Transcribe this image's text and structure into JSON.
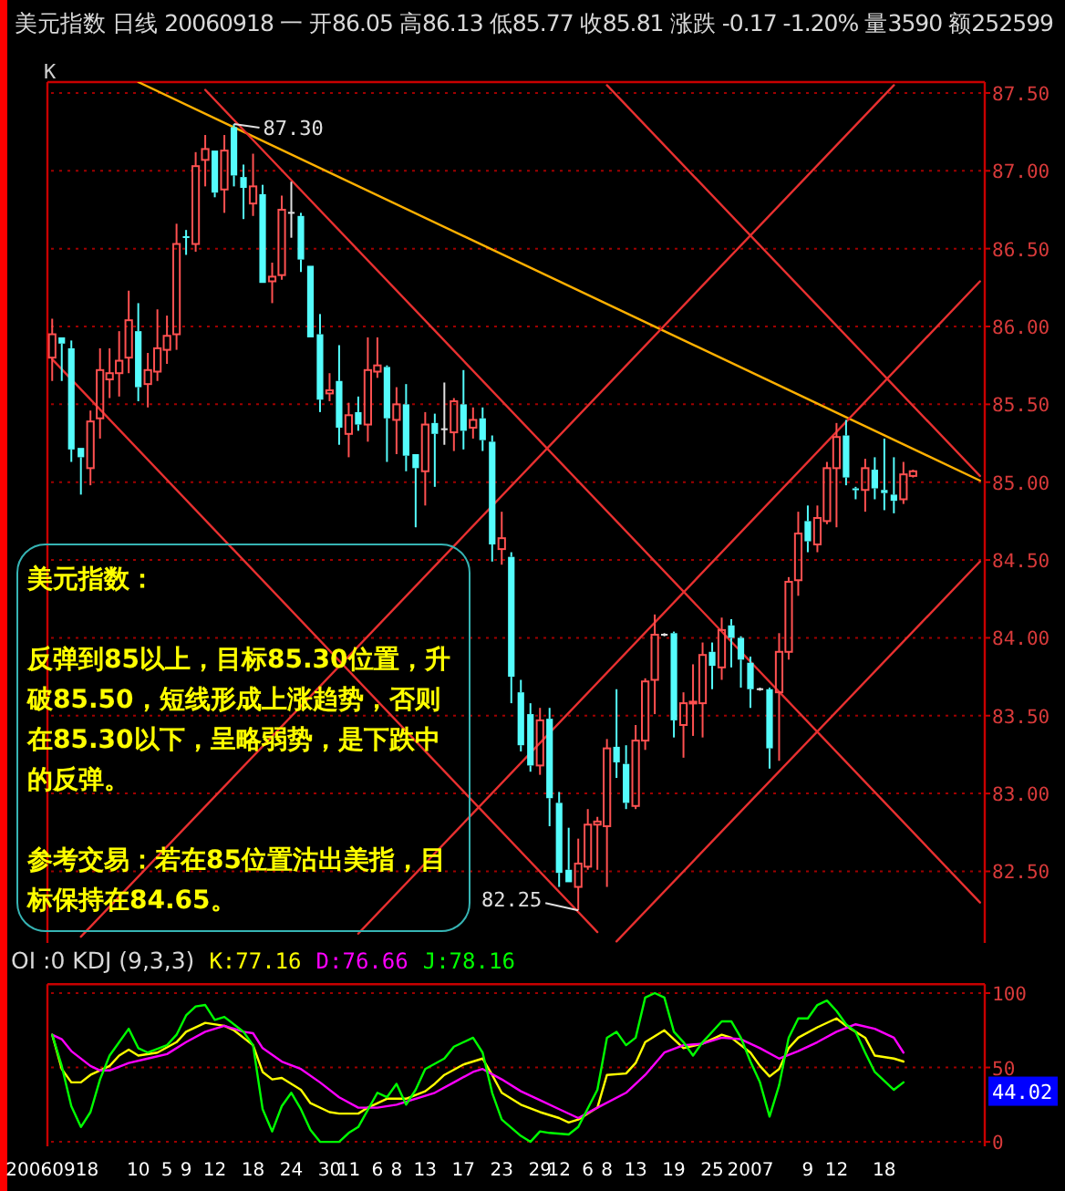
{
  "chart_data": [
    {
      "type": "candlestick",
      "title": "美元指数 日线 20060918 一 开86.05 高86.13 低85.77 收85.81 涨跌 -0.17 -1.20% 量3590 额252599",
      "categories": [
        "20060918",
        null,
        null,
        null,
        null,
        null,
        null,
        null,
        null,
        "10",
        null,
        null,
        "5",
        null,
        "9",
        null,
        null,
        "12",
        null,
        null,
        null,
        "18",
        null,
        null,
        null,
        "24",
        null,
        null,
        null,
        "30",
        null,
        "11",
        null,
        null,
        "6",
        null,
        "8",
        null,
        null,
        "13",
        null,
        null,
        null,
        "17",
        null,
        null,
        null,
        "23",
        null,
        null,
        null,
        "29",
        null,
        "12",
        null,
        null,
        "6",
        null,
        "8",
        null,
        null,
        "13",
        null,
        null,
        null,
        "19",
        null,
        null,
        null,
        "25",
        null,
        null,
        null,
        "2007",
        null,
        null,
        null,
        null,
        null,
        "9",
        null,
        null,
        "12",
        null,
        null,
        null,
        null,
        "18",
        null,
        null,
        null,
        null,
        null,
        null,
        null,
        null,
        null,
        null
      ],
      "ylim": [
        82.04,
        87.57
      ],
      "yticks": [
        {
          "value": 82.5,
          "label": "82.50"
        },
        {
          "value": 83,
          "label": "83.00"
        },
        {
          "value": 83.5,
          "label": "83.50"
        },
        {
          "value": 84,
          "label": "84.00"
        },
        {
          "value": 84.5,
          "label": "84.50"
        },
        {
          "value": 85,
          "label": "85.00"
        },
        {
          "value": 85.5,
          "label": "85.50"
        },
        {
          "value": 86,
          "label": "86.00"
        },
        {
          "value": 86.5,
          "label": "86.50"
        },
        {
          "value": 87,
          "label": "87.00"
        },
        {
          "value": 87.5,
          "label": "87.50"
        }
      ],
      "grid": "y",
      "tick_labels": "y",
      "ohlc": [
        [
          85.8,
          86.05,
          85.65,
          85.95
        ],
        [
          85.93,
          85.93,
          85.65,
          85.89
        ],
        [
          85.86,
          85.91,
          85.13,
          85.21
        ],
        [
          85.22,
          85.22,
          84.92,
          85.16
        ],
        [
          85.09,
          85.46,
          84.98,
          85.39
        ],
        [
          85.41,
          85.86,
          85.28,
          85.72
        ],
        [
          85.66,
          85.86,
          85.54,
          85.7
        ],
        [
          85.7,
          85.97,
          85.55,
          85.78
        ],
        [
          85.8,
          86.23,
          85.7,
          86.04
        ],
        [
          85.97,
          86.15,
          85.52,
          85.61
        ],
        [
          85.63,
          85.83,
          85.48,
          85.72
        ],
        [
          85.71,
          86.11,
          85.65,
          85.86
        ],
        [
          85.85,
          86.07,
          85.76,
          85.94
        ],
        [
          85.95,
          86.66,
          85.85,
          86.53
        ],
        [
          86.58,
          86.62,
          86.46,
          86.57
        ],
        [
          86.53,
          87.12,
          86.48,
          87.03
        ],
        [
          87.07,
          87.23,
          86.9,
          87.14
        ],
        [
          87.13,
          87.13,
          86.83,
          86.86
        ],
        [
          86.88,
          87.23,
          86.73,
          87.13
        ],
        [
          87.28,
          87.3,
          86.9,
          86.97
        ],
        [
          86.96,
          87.04,
          86.69,
          86.89
        ],
        [
          86.79,
          87.11,
          86.71,
          86.9
        ],
        [
          86.85,
          86.91,
          86.28,
          86.28
        ],
        [
          86.29,
          86.41,
          86.15,
          86.32
        ],
        [
          86.33,
          86.84,
          86.3,
          86.75
        ],
        [
          86.73,
          86.93,
          86.57,
          86.73
        ],
        [
          86.71,
          86.73,
          86.35,
          86.43
        ],
        [
          86.39,
          86.39,
          85.93,
          85.93
        ],
        [
          85.95,
          86.08,
          85.45,
          85.53
        ],
        [
          85.57,
          85.7,
          85.52,
          85.59
        ],
        [
          85.65,
          85.88,
          85.24,
          85.35
        ],
        [
          85.31,
          85.51,
          85.16,
          85.43
        ],
        [
          85.45,
          85.55,
          85.33,
          85.37
        ],
        [
          85.37,
          85.93,
          85.26,
          85.72
        ],
        [
          85.71,
          85.93,
          85.67,
          85.75
        ],
        [
          85.74,
          85.75,
          85.13,
          85.41
        ],
        [
          85.4,
          85.61,
          85.18,
          85.5
        ],
        [
          85.5,
          85.63,
          85.07,
          85.17
        ],
        [
          85.18,
          85.18,
          84.71,
          85.09
        ],
        [
          85.07,
          85.45,
          84.85,
          85.37
        ],
        [
          85.38,
          85.44,
          84.97,
          85.31
        ],
        [
          85.34,
          85.64,
          85.24,
          85.34
        ],
        [
          85.32,
          85.54,
          85.2,
          85.52
        ],
        [
          85.5,
          85.72,
          85.21,
          85.33
        ],
        [
          85.35,
          85.48,
          85.28,
          85.4
        ],
        [
          85.41,
          85.48,
          85.2,
          85.27
        ],
        [
          85.26,
          85.3,
          84.49,
          84.6
        ],
        [
          84.57,
          84.81,
          84.47,
          84.64
        ],
        [
          84.52,
          84.55,
          83.58,
          83.75
        ],
        [
          83.65,
          83.73,
          83.27,
          83.31
        ],
        [
          83.51,
          83.58,
          83.14,
          83.18
        ],
        [
          83.18,
          83.55,
          83.12,
          83.47
        ],
        [
          83.48,
          83.55,
          82.79,
          82.97
        ],
        [
          82.94,
          83.01,
          82.4,
          82.49
        ],
        [
          82.51,
          82.78,
          82.43,
          82.43
        ],
        [
          82.4,
          82.71,
          82.25,
          82.55
        ],
        [
          82.53,
          82.9,
          82.51,
          82.8
        ],
        [
          82.8,
          82.85,
          82.51,
          82.82
        ],
        [
          82.79,
          83.35,
          82.4,
          83.29
        ],
        [
          83.3,
          83.67,
          83.1,
          83.2
        ],
        [
          83.19,
          83.31,
          82.9,
          82.94
        ],
        [
          82.92,
          83.44,
          82.9,
          83.34
        ],
        [
          83.34,
          83.74,
          83.28,
          83.72
        ],
        [
          83.73,
          84.15,
          83.51,
          84.02
        ],
        [
          84.02,
          84.03,
          84.01,
          84.02
        ],
        [
          84.03,
          84.04,
          83.36,
          83.47
        ],
        [
          83.44,
          83.65,
          83.23,
          83.58
        ],
        [
          83.58,
          83.83,
          83.37,
          83.59
        ],
        [
          83.58,
          83.97,
          83.36,
          83.89
        ],
        [
          83.91,
          83.97,
          83.67,
          83.82
        ],
        [
          83.81,
          84.13,
          83.73,
          84.05
        ],
        [
          84.08,
          84.12,
          83.81,
          84.0
        ],
        [
          84.0,
          84.01,
          83.68,
          83.86
        ],
        [
          83.84,
          83.88,
          83.55,
          83.67
        ],
        [
          83.67,
          83.68,
          83.66,
          83.67
        ],
        [
          83.67,
          83.68,
          83.16,
          83.29
        ],
        [
          83.65,
          84.03,
          83.21,
          83.91
        ],
        [
          83.91,
          84.39,
          83.86,
          84.36
        ],
        [
          84.37,
          84.81,
          84.27,
          84.67
        ],
        [
          84.75,
          84.85,
          84.55,
          84.62
        ],
        [
          84.6,
          84.85,
          84.55,
          84.77
        ],
        [
          84.75,
          85.13,
          84.73,
          85.09
        ],
        [
          85.09,
          85.38,
          84.71,
          85.29
        ],
        [
          85.3,
          85.4,
          84.98,
          85.03
        ],
        [
          84.96,
          84.97,
          84.89,
          84.95
        ],
        [
          84.95,
          85.15,
          84.81,
          85.09
        ],
        [
          85.08,
          85.16,
          84.89,
          84.96
        ],
        [
          84.95,
          85.28,
          84.82,
          84.93
        ],
        [
          84.92,
          85.16,
          84.8,
          84.88
        ],
        [
          84.89,
          85.13,
          84.86,
          85.05
        ],
        [
          85.04,
          85.08,
          85.03,
          85.07
        ],
        null,
        null,
        null,
        null,
        null,
        null,
        null
      ],
      "series": [
        {
          "type": "line",
          "color": "#ffb000",
          "values": [
            null,
            null,
            null,
            null,
            null,
            null,
            null,
            null,
            null,
            87.57,
            null,
            null,
            null,
            null,
            null,
            null,
            null,
            null,
            null,
            null,
            null,
            null,
            null,
            null,
            null,
            null,
            null,
            null,
            null,
            null,
            null,
            null,
            null,
            null,
            null,
            null,
            null,
            null,
            null,
            null,
            null,
            null,
            null,
            null,
            null,
            null,
            null,
            null,
            null,
            null,
            null,
            null,
            null,
            null,
            null,
            null,
            null,
            null,
            null,
            null,
            null,
            null,
            null,
            null,
            null,
            null,
            null,
            null,
            null,
            null,
            null,
            null,
            null,
            null,
            null,
            null,
            null,
            null,
            null,
            null,
            null,
            null,
            null,
            null,
            null,
            null,
            null,
            null,
            null,
            null,
            null,
            null,
            null,
            null,
            null,
            null,
            null,
            85.01
          ]
        },
        {
          "type": "line",
          "color": "#e83030",
          "values": [
            null,
            null,
            null,
            null,
            null,
            null,
            null,
            null,
            null,
            null,
            null,
            null,
            null,
            null,
            null,
            null,
            87.52,
            null,
            null,
            null,
            null,
            null,
            null,
            null,
            null,
            null,
            null,
            null,
            null,
            null,
            null,
            null,
            null,
            null,
            null,
            null,
            null,
            null,
            null,
            null,
            null,
            null,
            null,
            null,
            null,
            null,
            null,
            null,
            null,
            null,
            null,
            null,
            null,
            null,
            null,
            null,
            null,
            null,
            null,
            null,
            null,
            null,
            null,
            null,
            null,
            null,
            null,
            null,
            null,
            null,
            null,
            null,
            null,
            null,
            null,
            null,
            null,
            null,
            null,
            null,
            null,
            null,
            null,
            null,
            null,
            null,
            null,
            null,
            null,
            null,
            null,
            null,
            null,
            null,
            null,
            null,
            null,
            82.3
          ]
        },
        {
          "type": "line",
          "color": "#e83030",
          "values": [
            null,
            null,
            null,
            null,
            null,
            null,
            null,
            null,
            null,
            null,
            null,
            null,
            null,
            null,
            null,
            null,
            null,
            null,
            null,
            null,
            null,
            null,
            null,
            null,
            null,
            null,
            null,
            null,
            null,
            null,
            null,
            null,
            null,
            null,
            null,
            null,
            null,
            null,
            null,
            null,
            null,
            null,
            null,
            null,
            null,
            null,
            null,
            null,
            null,
            null,
            null,
            null,
            null,
            null,
            null,
            null,
            null,
            null,
            87.55,
            null,
            null,
            null,
            null,
            null,
            null,
            null,
            null,
            null,
            null,
            null,
            null,
            null,
            null,
            null,
            null,
            null,
            null,
            null,
            null,
            null,
            null,
            null,
            null,
            null,
            null,
            null,
            null,
            null,
            null,
            null,
            null,
            null,
            null,
            null,
            null,
            null,
            null,
            85.04
          ]
        },
        {
          "type": "line",
          "color": "#e83030",
          "values": [
            null,
            null,
            null,
            82.08,
            null,
            null,
            null,
            null,
            null,
            null,
            null,
            null,
            null,
            null,
            null,
            null,
            null,
            null,
            null,
            null,
            null,
            null,
            null,
            null,
            null,
            null,
            null,
            null,
            null,
            null,
            null,
            null,
            null,
            null,
            null,
            null,
            null,
            null,
            null,
            null,
            null,
            null,
            null,
            null,
            null,
            null,
            null,
            null,
            null,
            null,
            null,
            null,
            null,
            null,
            null,
            null,
            null,
            null,
            null,
            null,
            null,
            null,
            null,
            null,
            null,
            null,
            null,
            null,
            null,
            null,
            null,
            null,
            null,
            null,
            null,
            null,
            null,
            null,
            null,
            null,
            null,
            null,
            null,
            null,
            null,
            null,
            null,
            null,
            87.55,
            null,
            null,
            null,
            null,
            null,
            null,
            null,
            null,
            null
          ]
        },
        {
          "type": "line",
          "color": "#e83030",
          "values": [
            null,
            null,
            null,
            null,
            null,
            null,
            null,
            null,
            null,
            null,
            null,
            null,
            null,
            null,
            null,
            null,
            null,
            null,
            null,
            null,
            null,
            null,
            null,
            null,
            null,
            null,
            null,
            null,
            null,
            null,
            null,
            null,
            82.1,
            null,
            null,
            null,
            null,
            null,
            null,
            null,
            null,
            null,
            null,
            null,
            null,
            null,
            null,
            null,
            null,
            null,
            null,
            null,
            null,
            null,
            null,
            null,
            null,
            null,
            null,
            null,
            null,
            null,
            null,
            null,
            null,
            null,
            null,
            null,
            null,
            null,
            null,
            null,
            null,
            null,
            null,
            null,
            null,
            null,
            null,
            null,
            null,
            null,
            null,
            null,
            null,
            null,
            null,
            null,
            null,
            null,
            null,
            null,
            null,
            null,
            null,
            null,
            null,
            86.29
          ]
        },
        {
          "type": "line",
          "color": "#e83030",
          "values": [
            85.79,
            null,
            null,
            null,
            null,
            null,
            null,
            null,
            null,
            null,
            null,
            null,
            null,
            null,
            null,
            null,
            null,
            null,
            null,
            null,
            null,
            null,
            null,
            null,
            null,
            null,
            null,
            null,
            null,
            null,
            null,
            null,
            null,
            null,
            null,
            null,
            null,
            null,
            null,
            null,
            null,
            null,
            null,
            null,
            null,
            null,
            null,
            null,
            null,
            null,
            null,
            null,
            null,
            null,
            null,
            null,
            null,
            82.11,
            null,
            null,
            null,
            null,
            null,
            null,
            null,
            null,
            null,
            null,
            null,
            null,
            null,
            null,
            null,
            null,
            null,
            null,
            null,
            null,
            null,
            null,
            null,
            null,
            null,
            null,
            null,
            null,
            null,
            null,
            null,
            null,
            null,
            null,
            null,
            null,
            null,
            null,
            null,
            null
          ]
        },
        {
          "type": "line",
          "color": "#e83030",
          "values": [
            null,
            null,
            null,
            null,
            null,
            null,
            null,
            null,
            null,
            null,
            null,
            null,
            null,
            null,
            null,
            null,
            null,
            null,
            null,
            null,
            null,
            null,
            null,
            null,
            null,
            null,
            null,
            null,
            null,
            null,
            null,
            null,
            null,
            null,
            null,
            null,
            null,
            null,
            null,
            null,
            null,
            null,
            null,
            null,
            null,
            null,
            null,
            null,
            null,
            null,
            null,
            null,
            null,
            null,
            null,
            null,
            null,
            null,
            null,
            82.05,
            null,
            null,
            null,
            null,
            null,
            null,
            null,
            null,
            null,
            null,
            null,
            null,
            null,
            null,
            null,
            null,
            null,
            null,
            null,
            null,
            null,
            null,
            null,
            null,
            null,
            null,
            null,
            null,
            null,
            null,
            null,
            null,
            null,
            null,
            null,
            null,
            null,
            84.49
          ]
        }
      ],
      "annotations": [
        "K",
        "美元指数：",
        "反弹到85以上，目标85.30位置，升破85.50，短线形成上涨趋势，否则在85.30以下，呈略弱势，是下跌中的反弹。",
        "参考交易：若在85位置沽出美指，目标保持在84.65。",
        "87.30",
        "82.25"
      ]
    },
    {
      "type": "line",
      "title": "OI :0 KDJ (9,3,3)",
      "categories": [
        "20060918",
        null,
        null,
        null,
        null,
        null,
        null,
        null,
        null,
        "10",
        null,
        null,
        "5",
        null,
        "9",
        null,
        null,
        "12",
        null,
        null,
        null,
        "18",
        null,
        null,
        null,
        "24",
        null,
        null,
        null,
        "30",
        null,
        "11",
        null,
        null,
        "6",
        null,
        "8",
        null,
        null,
        "13",
        null,
        null,
        null,
        "17",
        null,
        null,
        null,
        "23",
        null,
        null,
        null,
        "29",
        null,
        "12",
        null,
        null,
        "6",
        null,
        "8",
        null,
        null,
        "13",
        null,
        null,
        null,
        "19",
        null,
        null,
        null,
        "25",
        null,
        null,
        null,
        "2007",
        null,
        null,
        null,
        null,
        null,
        "9",
        null,
        null,
        "12",
        null,
        null,
        null,
        null,
        "18",
        null,
        null,
        null,
        null,
        null,
        null,
        null,
        null,
        null,
        null
      ],
      "ylim": [
        -3,
        106
      ],
      "yticks": [
        0,
        50,
        100
      ],
      "grid": "y",
      "legend": "top left",
      "series": [
        {
          "name": "K:77.16",
          "color": "#ffff00",
          "values": [
            72,
            49,
            40,
            40,
            45,
            null,
            51,
            58,
            62,
            58,
            null,
            60,
            null,
            67,
            74,
            null,
            80,
            null,
            78,
            75,
            null,
            65,
            47,
            42,
            43,
            null,
            35,
            26,
            null,
            20,
            19,
            null,
            19,
            23,
            null,
            29,
            null,
            29,
            null,
            34,
            39,
            45,
            null,
            52,
            null,
            56,
            45,
            33,
            null,
            25,
            null,
            20,
            null,
            16,
            13,
            15,
            null,
            23,
            45,
            null,
            46,
            53,
            67,
            null,
            75,
            69,
            63,
            null,
            66,
            null,
            72,
            70,
            null,
            60,
            51,
            44,
            49,
            63,
            70,
            null,
            77,
            null,
            83,
            78,
            null,
            70,
            58,
            null,
            56,
            54,
            null,
            null,
            null,
            null,
            null,
            null,
            null,
            null
          ]
        },
        {
          "name": "D:76.66",
          "color": "#ff00ff",
          "values": [
            72,
            69,
            61,
            null,
            51,
            48,
            48,
            null,
            53,
            null,
            56,
            null,
            59,
            null,
            67,
            null,
            74,
            null,
            78,
            null,
            74,
            73,
            63,
            null,
            54,
            null,
            49,
            null,
            40,
            null,
            30,
            null,
            23,
            null,
            23,
            null,
            25,
            null,
            29,
            null,
            33,
            null,
            40,
            null,
            47,
            49,
            null,
            42,
            null,
            34,
            null,
            28,
            null,
            22,
            null,
            16,
            null,
            23,
            null,
            null,
            33,
            null,
            45,
            null,
            60,
            null,
            65,
            null,
            66,
            null,
            70,
            null,
            69,
            null,
            63,
            null,
            56,
            null,
            61,
            null,
            67,
            null,
            74,
            null,
            79,
            null,
            76,
            null,
            70,
            60,
            null,
            null,
            null,
            null,
            null,
            null,
            null,
            null
          ]
        },
        {
          "name": "J:78.16",
          "color": "#00ff00",
          "values": [
            72,
            51,
            24,
            10,
            20,
            42,
            58,
            null,
            76,
            63,
            60,
            null,
            65,
            72,
            85,
            91,
            92,
            82,
            84,
            null,
            74,
            65,
            22,
            7,
            24,
            33,
            22,
            8,
            0,
            null,
            0,
            6,
            10,
            null,
            33,
            30,
            39,
            25,
            35,
            49,
            null,
            56,
            64,
            null,
            70,
            60,
            33,
            15,
            null,
            4,
            0,
            7,
            6,
            null,
            5,
            10,
            null,
            35,
            70,
            74,
            65,
            70,
            97,
            100,
            97,
            74,
            67,
            58,
            67,
            null,
            81,
            81,
            70,
            54,
            40,
            17,
            38,
            70,
            83,
            83,
            92,
            95,
            88,
            79,
            74,
            60,
            47,
            null,
            35,
            40,
            null,
            null,
            null,
            null,
            null,
            null,
            null,
            null
          ]
        }
      ],
      "annotations": [
        "44.02"
      ]
    }
  ]
}
